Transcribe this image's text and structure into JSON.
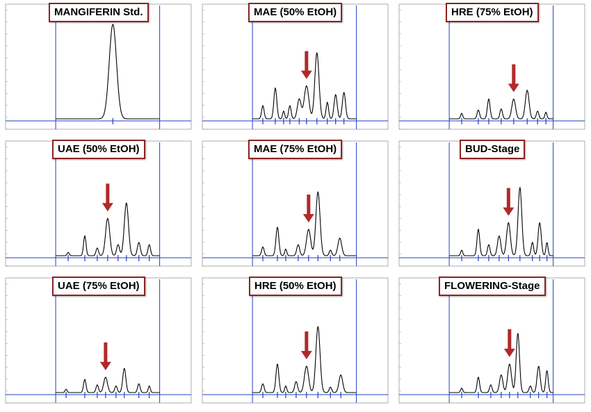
{
  "figure": {
    "accent_color": "#8b2323",
    "trace_color": "#000000",
    "marker_color": "#1f3fbf",
    "arrow_color": "#b02a2a"
  },
  "chart_data": [
    {
      "type": "line",
      "title": "MANGIFERIN Std.",
      "peaks": [
        {
          "t": 0.55,
          "h": 0.86,
          "w": 0.035
        }
      ],
      "ylim": [
        0,
        1
      ],
      "arrow": null
    },
    {
      "type": "line",
      "title": "MAE (50% EtOH)",
      "peaks": [
        {
          "t": 0.1,
          "h": 0.12,
          "w": 0.012
        },
        {
          "t": 0.22,
          "h": 0.28,
          "w": 0.014
        },
        {
          "t": 0.3,
          "h": 0.07,
          "w": 0.01
        },
        {
          "t": 0.36,
          "h": 0.12,
          "w": 0.012
        },
        {
          "t": 0.45,
          "h": 0.18,
          "w": 0.018
        },
        {
          "t": 0.52,
          "h": 0.3,
          "w": 0.022
        },
        {
          "t": 0.62,
          "h": 0.6,
          "w": 0.02
        },
        {
          "t": 0.72,
          "h": 0.15,
          "w": 0.012
        },
        {
          "t": 0.8,
          "h": 0.22,
          "w": 0.015
        },
        {
          "t": 0.88,
          "h": 0.24,
          "w": 0.015
        }
      ],
      "ylim": [
        0,
        1
      ],
      "arrow": 0.52
    },
    {
      "type": "line",
      "title": "HRE (75% EtOH)",
      "peaks": [
        {
          "t": 0.12,
          "h": 0.05,
          "w": 0.01
        },
        {
          "t": 0.28,
          "h": 0.08,
          "w": 0.012
        },
        {
          "t": 0.38,
          "h": 0.18,
          "w": 0.013
        },
        {
          "t": 0.5,
          "h": 0.09,
          "w": 0.012
        },
        {
          "t": 0.62,
          "h": 0.18,
          "w": 0.018
        },
        {
          "t": 0.75,
          "h": 0.26,
          "w": 0.018
        },
        {
          "t": 0.85,
          "h": 0.07,
          "w": 0.012
        },
        {
          "t": 0.93,
          "h": 0.06,
          "w": 0.01
        }
      ],
      "ylim": [
        0,
        1
      ],
      "arrow": 0.62
    },
    {
      "type": "line",
      "title": "UAE (50% EtOH)",
      "peaks": [
        {
          "t": 0.12,
          "h": 0.03,
          "w": 0.01
        },
        {
          "t": 0.28,
          "h": 0.18,
          "w": 0.012
        },
        {
          "t": 0.4,
          "h": 0.07,
          "w": 0.012
        },
        {
          "t": 0.5,
          "h": 0.34,
          "w": 0.02
        },
        {
          "t": 0.6,
          "h": 0.1,
          "w": 0.014
        },
        {
          "t": 0.68,
          "h": 0.48,
          "w": 0.02
        },
        {
          "t": 0.8,
          "h": 0.12,
          "w": 0.014
        },
        {
          "t": 0.9,
          "h": 0.1,
          "w": 0.012
        }
      ],
      "ylim": [
        0,
        1
      ],
      "arrow": 0.5
    },
    {
      "type": "line",
      "title": "MAE (75% EtOH)",
      "peaks": [
        {
          "t": 0.1,
          "h": 0.08,
          "w": 0.012
        },
        {
          "t": 0.24,
          "h": 0.26,
          "w": 0.014
        },
        {
          "t": 0.32,
          "h": 0.06,
          "w": 0.01
        },
        {
          "t": 0.44,
          "h": 0.1,
          "w": 0.014
        },
        {
          "t": 0.54,
          "h": 0.24,
          "w": 0.02
        },
        {
          "t": 0.63,
          "h": 0.58,
          "w": 0.02
        },
        {
          "t": 0.75,
          "h": 0.05,
          "w": 0.012
        },
        {
          "t": 0.84,
          "h": 0.16,
          "w": 0.018
        }
      ],
      "ylim": [
        0,
        1
      ],
      "arrow": 0.54
    },
    {
      "type": "line",
      "title": "BUD-Stage",
      "peaks": [
        {
          "t": 0.12,
          "h": 0.05,
          "w": 0.01
        },
        {
          "t": 0.28,
          "h": 0.24,
          "w": 0.013
        },
        {
          "t": 0.38,
          "h": 0.1,
          "w": 0.012
        },
        {
          "t": 0.48,
          "h": 0.18,
          "w": 0.016
        },
        {
          "t": 0.57,
          "h": 0.3,
          "w": 0.018
        },
        {
          "t": 0.68,
          "h": 0.62,
          "w": 0.018
        },
        {
          "t": 0.8,
          "h": 0.12,
          "w": 0.012
        },
        {
          "t": 0.87,
          "h": 0.3,
          "w": 0.015
        },
        {
          "t": 0.94,
          "h": 0.12,
          "w": 0.01
        }
      ],
      "ylim": [
        0,
        1
      ],
      "arrow": 0.57
    },
    {
      "type": "line",
      "title": "UAE (75% EtOH)",
      "peaks": [
        {
          "t": 0.1,
          "h": 0.03,
          "w": 0.01
        },
        {
          "t": 0.28,
          "h": 0.12,
          "w": 0.012
        },
        {
          "t": 0.4,
          "h": 0.07,
          "w": 0.012
        },
        {
          "t": 0.48,
          "h": 0.14,
          "w": 0.018
        },
        {
          "t": 0.58,
          "h": 0.06,
          "w": 0.012
        },
        {
          "t": 0.66,
          "h": 0.22,
          "w": 0.015
        },
        {
          "t": 0.8,
          "h": 0.08,
          "w": 0.012
        },
        {
          "t": 0.9,
          "h": 0.06,
          "w": 0.01
        }
      ],
      "ylim": [
        0,
        1
      ],
      "arrow": 0.48
    },
    {
      "type": "line",
      "title": "HRE (50% EtOH)",
      "peaks": [
        {
          "t": 0.1,
          "h": 0.08,
          "w": 0.012
        },
        {
          "t": 0.24,
          "h": 0.26,
          "w": 0.014
        },
        {
          "t": 0.32,
          "h": 0.06,
          "w": 0.01
        },
        {
          "t": 0.42,
          "h": 0.1,
          "w": 0.014
        },
        {
          "t": 0.52,
          "h": 0.24,
          "w": 0.02
        },
        {
          "t": 0.63,
          "h": 0.6,
          "w": 0.02
        },
        {
          "t": 0.75,
          "h": 0.05,
          "w": 0.012
        },
        {
          "t": 0.85,
          "h": 0.16,
          "w": 0.018
        }
      ],
      "ylim": [
        0,
        1
      ],
      "arrow": 0.52
    },
    {
      "type": "line",
      "title": "FLOWERING-Stage",
      "peaks": [
        {
          "t": 0.12,
          "h": 0.04,
          "w": 0.01
        },
        {
          "t": 0.28,
          "h": 0.14,
          "w": 0.012
        },
        {
          "t": 0.4,
          "h": 0.07,
          "w": 0.012
        },
        {
          "t": 0.5,
          "h": 0.16,
          "w": 0.016
        },
        {
          "t": 0.58,
          "h": 0.26,
          "w": 0.018
        },
        {
          "t": 0.66,
          "h": 0.54,
          "w": 0.016
        },
        {
          "t": 0.78,
          "h": 0.06,
          "w": 0.012
        },
        {
          "t": 0.86,
          "h": 0.24,
          "w": 0.015
        },
        {
          "t": 0.94,
          "h": 0.2,
          "w": 0.012
        }
      ],
      "ylim": [
        0,
        1
      ],
      "arrow": 0.58
    }
  ]
}
